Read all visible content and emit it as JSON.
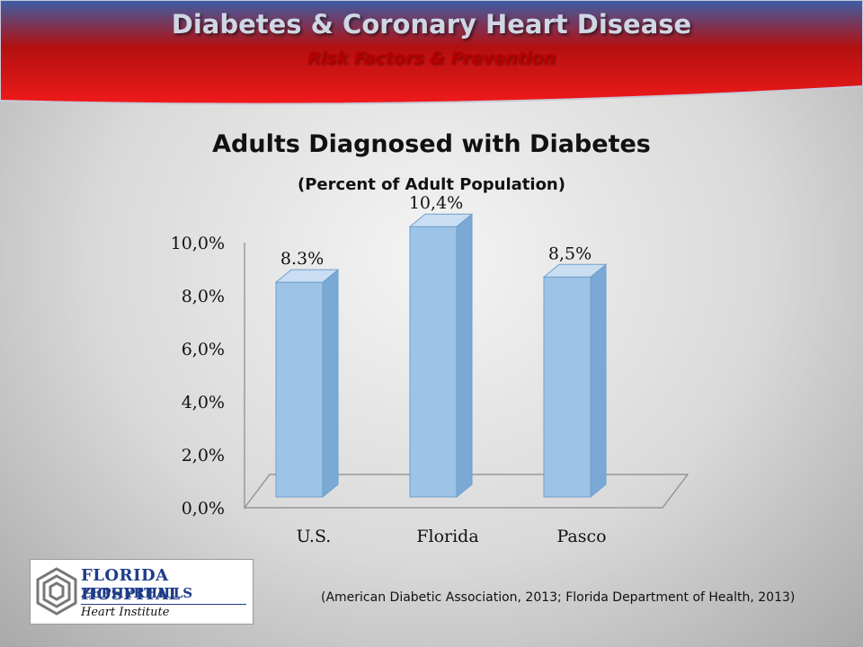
{
  "banner": {
    "title": "Diabetes & Coronary Heart Disease",
    "subtitle": "Risk Factors & Prevention"
  },
  "chart_data": {
    "type": "bar",
    "title": "Adults Diagnosed with Diabetes",
    "subtitle": "(Percent of Adult Population)",
    "categories": [
      "U.S.",
      "Florida",
      "Pasco"
    ],
    "values": [
      8.3,
      10.4,
      8.5
    ],
    "data_labels": [
      "8.3%",
      "10,4%",
      "8,5%"
    ],
    "ylim": [
      0,
      10
    ],
    "yticks": [
      {
        "value": 0,
        "label": "0,0%"
      },
      {
        "value": 2,
        "label": "2,0%"
      },
      {
        "value": 4,
        "label": "4,0%"
      },
      {
        "value": 6,
        "label": "6,0%"
      },
      {
        "value": 8,
        "label": "8,0%"
      },
      {
        "value": 10,
        "label": "10,0%"
      }
    ],
    "xlabel": "",
    "ylabel": "",
    "bar_color": "#9dc3e6",
    "grid": false
  },
  "source": "(American Diabetic Association, 2013; Florida Department of Health, 2013)",
  "logo": {
    "line1": "FLORIDA HOSPITAL",
    "line2": "ZEPHYRHILLS",
    "line3": "Heart Institute"
  }
}
